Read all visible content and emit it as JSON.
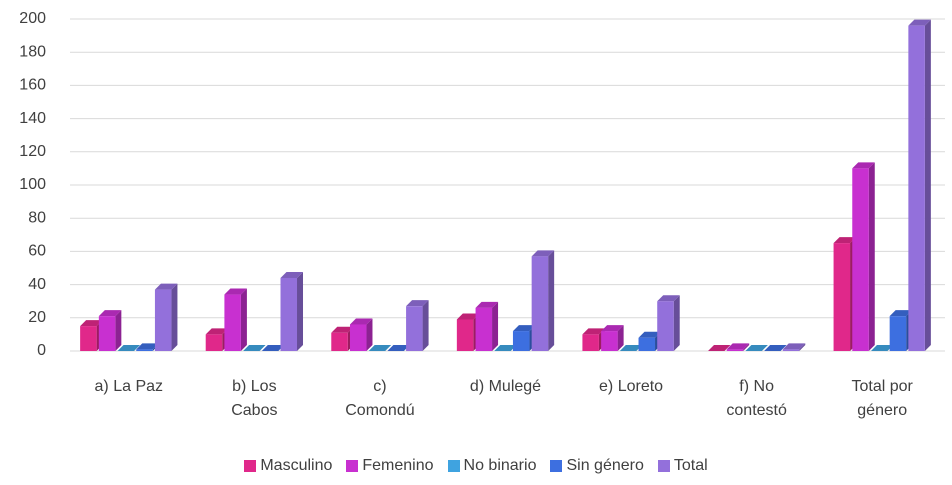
{
  "chart_data": {
    "type": "bar3d",
    "categories": [
      "a) La Paz",
      "b) Los Cabos",
      "c) Comondú",
      "d) Mulegé",
      "e) Loreto",
      "f) No contestó",
      "Total por género"
    ],
    "series": [
      {
        "name": "Masculino",
        "color": "#e0288a",
        "values": [
          15,
          10,
          11,
          19,
          10,
          0,
          65
        ]
      },
      {
        "name": "Femenino",
        "color": "#c830d0",
        "values": [
          21,
          34,
          16,
          26,
          12,
          1,
          110
        ]
      },
      {
        "name": "No binario",
        "color": "#3fa3e0",
        "values": [
          0,
          0,
          0,
          0,
          0,
          0,
          0
        ]
      },
      {
        "name": "Sin género",
        "color": "#3d6fe0",
        "values": [
          1,
          0,
          0,
          12,
          8,
          0,
          21
        ]
      },
      {
        "name": "Total",
        "color": "#9370db",
        "values": [
          37,
          44,
          27,
          57,
          30,
          1,
          196
        ]
      }
    ],
    "ylim": [
      0,
      200
    ],
    "yticks": [
      0,
      20,
      40,
      60,
      80,
      100,
      120,
      140,
      160,
      180,
      200
    ],
    "grid": true,
    "legend": "bottom"
  }
}
